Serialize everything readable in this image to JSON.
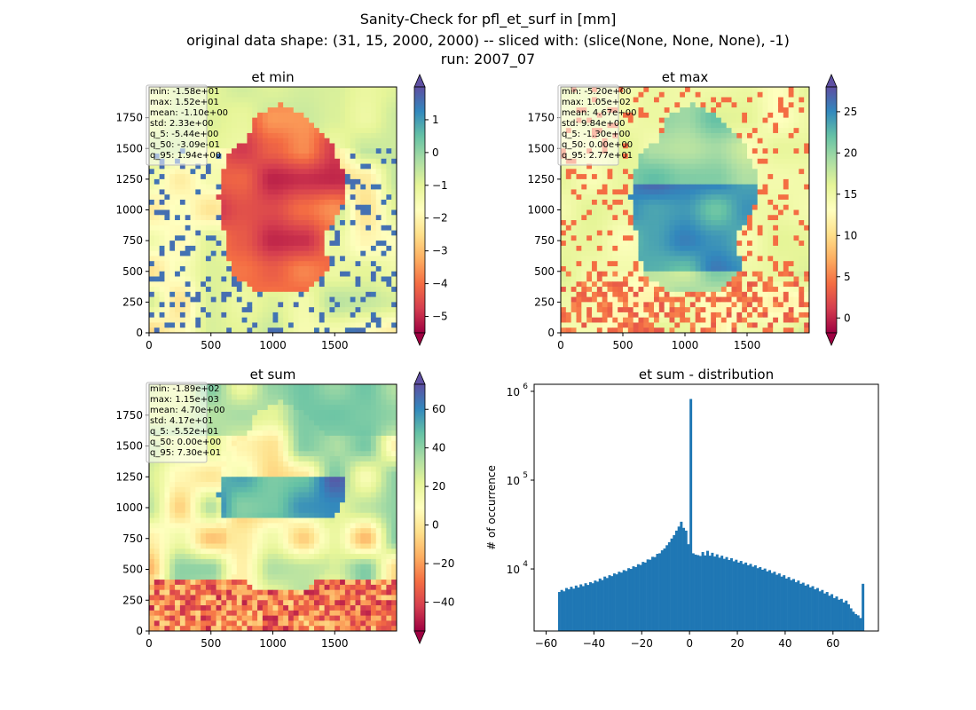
{
  "figure": {
    "title_lines": [
      "Sanity-Check for pfl_et_surf in [mm]",
      "original data shape: (31, 15, 2000, 2000) -- sliced with: (slice(None, None, None), -1)",
      "run: 2007_07"
    ]
  },
  "chart_data": [
    {
      "type": "heatmap",
      "title": "et min",
      "xlim": [
        0,
        2000
      ],
      "ylim": [
        0,
        2000
      ],
      "xticks": [
        "0",
        "500",
        "1000",
        "1500"
      ],
      "yticks": [
        "0",
        "250",
        "500",
        "750",
        "1000",
        "1250",
        "1500",
        "1750"
      ],
      "colormap": "Spectral",
      "colorbar": {
        "range": [
          -5.5,
          2.0
        ],
        "ticks": [
          "−5",
          "−4",
          "−3",
          "−2",
          "−1",
          "0",
          "1"
        ],
        "tick_values": [
          -5,
          -4,
          -3,
          -2,
          -1,
          0,
          1
        ],
        "extend": "both"
      },
      "stats": [
        "min: -1.58e+01",
        "max: 1.52e+01",
        "mean: -1.10e+00",
        "std: 2.33e+00",
        "q_5: -5.44e+00",
        "q_50: -3.09e-01",
        "q_95: 1.94e+00"
      ]
    },
    {
      "type": "heatmap",
      "title": "et max",
      "xlim": [
        0,
        2000
      ],
      "ylim": [
        0,
        2000
      ],
      "xticks": [
        "0",
        "500",
        "1000",
        "1500"
      ],
      "yticks": [
        "0",
        "250",
        "500",
        "750",
        "1000",
        "1250",
        "1500",
        "1750"
      ],
      "colormap": "Spectral",
      "colorbar": {
        "range": [
          -1.8,
          28
        ],
        "ticks": [
          "0",
          "5",
          "10",
          "15",
          "20",
          "25"
        ],
        "tick_values": [
          0,
          5,
          10,
          15,
          20,
          25
        ],
        "extend": "both"
      },
      "stats": [
        "min: -5.20e+00",
        "max: 1.05e+02",
        "mean: 4.67e+00",
        "std: 9.84e+00",
        "q_5: -1.30e+00",
        "q_50: 0.00e+00",
        "q_95: 2.77e+01"
      ]
    },
    {
      "type": "heatmap",
      "title": "et sum",
      "xlim": [
        0,
        2000
      ],
      "ylim": [
        0,
        2000
      ],
      "xticks": [
        "0",
        "500",
        "1000",
        "1500"
      ],
      "yticks": [
        "0",
        "250",
        "500",
        "750",
        "1000",
        "1250",
        "1500",
        "1750"
      ],
      "colormap": "Spectral",
      "colorbar": {
        "range": [
          -55,
          73
        ],
        "ticks": [
          "−40",
          "−20",
          "0",
          "20",
          "40",
          "60"
        ],
        "tick_values": [
          -40,
          -20,
          0,
          20,
          40,
          60
        ],
        "extend": "both"
      },
      "stats": [
        "min: -1.89e+02",
        "max: 1.15e+03",
        "mean: 4.70e+00",
        "std: 4.17e+01",
        "q_5: -5.52e+01",
        "q_50: 0.00e+00",
        "q_95: 7.30e+01"
      ]
    },
    {
      "type": "bar",
      "title": "et sum - distribution",
      "ylabel": "# of occurrence",
      "y_scale": "log",
      "xlim": [
        -65,
        79
      ],
      "ylim": [
        2000,
        1200000
      ],
      "xticks": [
        "−60",
        "−40",
        "−20",
        "0",
        "20",
        "40",
        "60"
      ],
      "xtick_values": [
        -60,
        -40,
        -20,
        0,
        20,
        40,
        60
      ],
      "yticks": [
        "10",
        "10",
        "10"
      ],
      "ytick_exponents": [
        "4",
        "5",
        "6"
      ],
      "ytick_values": [
        10000,
        100000,
        1000000
      ],
      "bar_color": "#1f77b4",
      "bins": [
        {
          "x": -55.0,
          "y": 5500
        },
        {
          "x": -54.0,
          "y": 5800
        },
        {
          "x": -53.0,
          "y": 5600
        },
        {
          "x": -52.0,
          "y": 6100
        },
        {
          "x": -51.0,
          "y": 5900
        },
        {
          "x": -50.0,
          "y": 6300
        },
        {
          "x": -49.0,
          "y": 6000
        },
        {
          "x": -48.0,
          "y": 6500
        },
        {
          "x": -47.0,
          "y": 6200
        },
        {
          "x": -46.0,
          "y": 6700
        },
        {
          "x": -45.0,
          "y": 6400
        },
        {
          "x": -44.0,
          "y": 6900
        },
        {
          "x": -43.0,
          "y": 6600
        },
        {
          "x": -42.0,
          "y": 7100
        },
        {
          "x": -41.0,
          "y": 6900
        },
        {
          "x": -40.0,
          "y": 7400
        },
        {
          "x": -39.0,
          "y": 7200
        },
        {
          "x": -38.0,
          "y": 7800
        },
        {
          "x": -37.0,
          "y": 7500
        },
        {
          "x": -36.0,
          "y": 8200
        },
        {
          "x": -35.0,
          "y": 7900
        },
        {
          "x": -34.0,
          "y": 8500
        },
        {
          "x": -33.0,
          "y": 8300
        },
        {
          "x": -32.0,
          "y": 8900
        },
        {
          "x": -31.0,
          "y": 8700
        },
        {
          "x": -30.0,
          "y": 9300
        },
        {
          "x": -29.0,
          "y": 9100
        },
        {
          "x": -28.0,
          "y": 9700
        },
        {
          "x": -27.0,
          "y": 9500
        },
        {
          "x": -26.0,
          "y": 10200
        },
        {
          "x": -25.0,
          "y": 10000
        },
        {
          "x": -24.0,
          "y": 10700
        },
        {
          "x": -23.0,
          "y": 10500
        },
        {
          "x": -22.0,
          "y": 11300
        },
        {
          "x": -21.0,
          "y": 11100
        },
        {
          "x": -20.0,
          "y": 12000
        },
        {
          "x": -19.0,
          "y": 11800
        },
        {
          "x": -18.0,
          "y": 12800
        },
        {
          "x": -17.0,
          "y": 12700
        },
        {
          "x": -16.0,
          "y": 13700
        },
        {
          "x": -15.0,
          "y": 13600
        },
        {
          "x": -14.0,
          "y": 14800
        },
        {
          "x": -13.0,
          "y": 15000
        },
        {
          "x": -12.0,
          "y": 16200
        },
        {
          "x": -11.0,
          "y": 17000
        },
        {
          "x": -10.0,
          "y": 18500
        },
        {
          "x": -9.0,
          "y": 20000
        },
        {
          "x": -8.0,
          "y": 22000
        },
        {
          "x": -7.0,
          "y": 24000
        },
        {
          "x": -6.0,
          "y": 27000
        },
        {
          "x": -5.0,
          "y": 30000
        },
        {
          "x": -4.0,
          "y": 34000
        },
        {
          "x": -3.0,
          "y": 29000
        },
        {
          "x": -2.0,
          "y": 27000
        },
        {
          "x": -1.0,
          "y": 19000
        },
        {
          "x": 0.0,
          "y": 820000
        },
        {
          "x": 1.0,
          "y": 15000
        },
        {
          "x": 2.0,
          "y": 14500
        },
        {
          "x": 3.0,
          "y": 14300
        },
        {
          "x": 4.0,
          "y": 14000
        },
        {
          "x": 5.0,
          "y": 15500
        },
        {
          "x": 6.0,
          "y": 14200
        },
        {
          "x": 7.0,
          "y": 16000
        },
        {
          "x": 8.0,
          "y": 14100
        },
        {
          "x": 9.0,
          "y": 15200
        },
        {
          "x": 10.0,
          "y": 13800
        },
        {
          "x": 11.0,
          "y": 14600
        },
        {
          "x": 12.0,
          "y": 13400
        },
        {
          "x": 13.0,
          "y": 14100
        },
        {
          "x": 14.0,
          "y": 13000
        },
        {
          "x": 15.0,
          "y": 13600
        },
        {
          "x": 16.0,
          "y": 12600
        },
        {
          "x": 17.0,
          "y": 13200
        },
        {
          "x": 18.0,
          "y": 12200
        },
        {
          "x": 19.0,
          "y": 12700
        },
        {
          "x": 20.0,
          "y": 11800
        },
        {
          "x": 21.0,
          "y": 12300
        },
        {
          "x": 22.0,
          "y": 11400
        },
        {
          "x": 23.0,
          "y": 11800
        },
        {
          "x": 24.0,
          "y": 11000
        },
        {
          "x": 25.0,
          "y": 11400
        },
        {
          "x": 26.0,
          "y": 10600
        },
        {
          "x": 27.0,
          "y": 11000
        },
        {
          "x": 28.0,
          "y": 10200
        },
        {
          "x": 29.0,
          "y": 10500
        },
        {
          "x": 30.0,
          "y": 9800
        },
        {
          "x": 31.0,
          "y": 10100
        },
        {
          "x": 32.0,
          "y": 9400
        },
        {
          "x": 33.0,
          "y": 9700
        },
        {
          "x": 34.0,
          "y": 9000
        },
        {
          "x": 35.0,
          "y": 9300
        },
        {
          "x": 36.0,
          "y": 8600
        },
        {
          "x": 37.0,
          "y": 8900
        },
        {
          "x": 38.0,
          "y": 8200
        },
        {
          "x": 39.0,
          "y": 8500
        },
        {
          "x": 40.0,
          "y": 7800
        },
        {
          "x": 41.0,
          "y": 8100
        },
        {
          "x": 42.0,
          "y": 7500
        },
        {
          "x": 43.0,
          "y": 7700
        },
        {
          "x": 44.0,
          "y": 7100
        },
        {
          "x": 45.0,
          "y": 7400
        },
        {
          "x": 46.0,
          "y": 6800
        },
        {
          "x": 47.0,
          "y": 7000
        },
        {
          "x": 48.0,
          "y": 6500
        },
        {
          "x": 49.0,
          "y": 6700
        },
        {
          "x": 50.0,
          "y": 6200
        },
        {
          "x": 51.0,
          "y": 6400
        },
        {
          "x": 52.0,
          "y": 5900
        },
        {
          "x": 53.0,
          "y": 6100
        },
        {
          "x": 54.0,
          "y": 5600
        },
        {
          "x": 55.0,
          "y": 5800
        },
        {
          "x": 56.0,
          "y": 5300
        },
        {
          "x": 57.0,
          "y": 5500
        },
        {
          "x": 58.0,
          "y": 5000
        },
        {
          "x": 59.0,
          "y": 5200
        },
        {
          "x": 60.0,
          "y": 4700
        },
        {
          "x": 61.0,
          "y": 4900
        },
        {
          "x": 62.0,
          "y": 4500
        },
        {
          "x": 63.0,
          "y": 4600
        },
        {
          "x": 64.0,
          "y": 4200
        },
        {
          "x": 65.0,
          "y": 4400
        },
        {
          "x": 66.0,
          "y": 4000
        },
        {
          "x": 67.0,
          "y": 3600
        },
        {
          "x": 68.0,
          "y": 3300
        },
        {
          "x": 69.0,
          "y": 3100
        },
        {
          "x": 70.0,
          "y": 3000
        },
        {
          "x": 71.0,
          "y": 2800
        },
        {
          "x": 72.0,
          "y": 6800
        }
      ]
    }
  ]
}
